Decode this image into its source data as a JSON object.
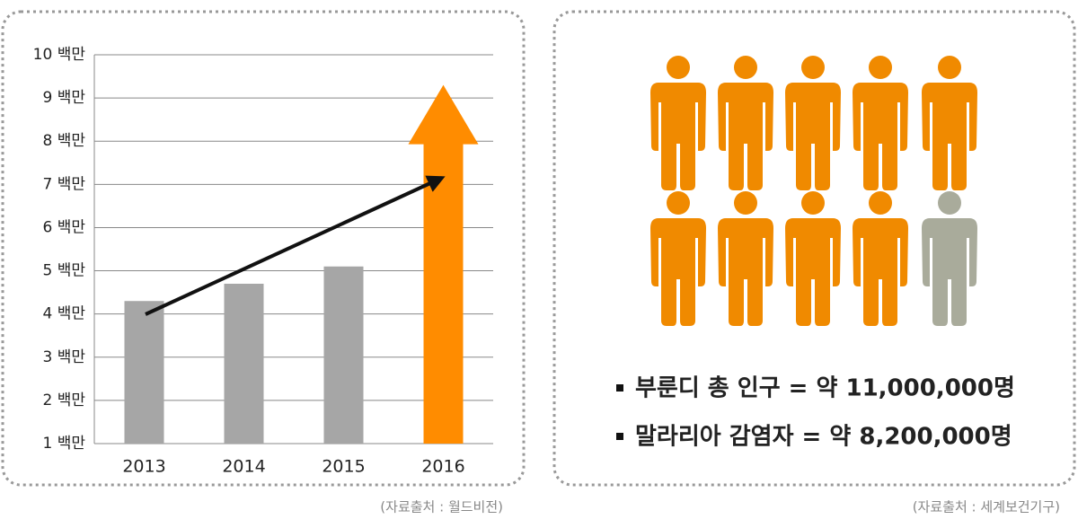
{
  "chart_data": {
    "type": "bar",
    "categories": [
      "2013",
      "2014",
      "2015",
      "2016"
    ],
    "values": [
      4.3,
      4.7,
      5.1,
      9.3
    ],
    "colors": [
      "#a6a6a6",
      "#a6a6a6",
      "#a6a6a6",
      "#ff8c00"
    ],
    "arrow_last": true,
    "ylim": [
      1,
      10
    ],
    "yticks": [
      {
        "value": 1,
        "label": "1 백만"
      },
      {
        "value": 2,
        "label": "2 백만"
      },
      {
        "value": 3,
        "label": "3 백만"
      },
      {
        "value": 4,
        "label": "4 백만"
      },
      {
        "value": 5,
        "label": "5 백만"
      },
      {
        "value": 6,
        "label": "6 백만"
      },
      {
        "value": 7,
        "label": "7 백만"
      },
      {
        "value": 8,
        "label": "8 백만"
      },
      {
        "value": 9,
        "label": "9 백만"
      },
      {
        "value": 10,
        "label": "10 백만"
      }
    ],
    "grid": true,
    "source": "(자료출처 : 월드비전)"
  },
  "infographic": {
    "items": [
      "부룬디 총 인구 = 약 11,000,000명",
      "말라리아 감염자 = 약 8,200,000명"
    ],
    "source": "(자료출처 : 세계보건기구)"
  }
}
